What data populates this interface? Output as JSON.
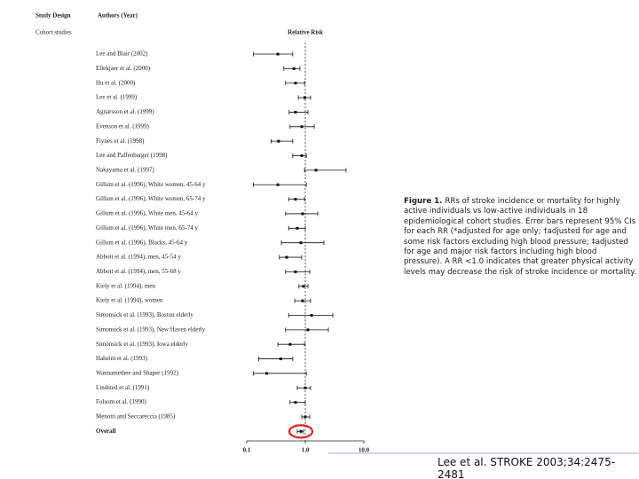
{
  "chart_data": {
    "type": "forest",
    "study_design_header": "Study Design",
    "authors_header": "Authors (Year)",
    "group_label": "Cohort studies",
    "x_label": "Relative Risk",
    "categories": [
      "Lee and Blair (2002)",
      "Ellekjaer et al. (2000)",
      "Hu et al. (2000)",
      "Lee et al. (1999)",
      "Agnarsson et al. (1999)",
      "Evenson et al. (1999)",
      "Fiynes et al. (1998)",
      "Lee and Paffenbarger (1998)",
      "Nakayama et al. (1997)",
      "Gillum et al. (1996), White women, 45-64 y",
      "Gillum et al. (1996), White women, 65-74 y",
      "Gillum et al. (1996), White men, 45-64 y",
      "Gillum et al. (1996), White men, 65-74 y",
      "Gillum et al. (1996), Blacks, 45-64 y",
      "Abbott et al. (1994), men, 45-54 y",
      "Abbott et al. (1994), men, 55-68 y",
      "Kiely et al. (1994), men",
      "Kiely et al. (1994), women",
      "Simonsick et al. (1993), Boston elderly",
      "Simonsick et al. (1993), New Haven elderly",
      "Simonsick et al. (1993), Iowa elderly",
      "Haheim et al. (1993)",
      "Wannamethee and Shaper (1992)",
      "Lindsted et al. (1991)",
      "Folsom et al. (1990)",
      "Menotti and Seccareccia (1985)",
      "Overall"
    ],
    "values": [
      0.34,
      0.64,
      0.68,
      0.98,
      0.68,
      0.87,
      0.35,
      0.87,
      1.52,
      0.34,
      0.68,
      0.9,
      0.73,
      0.84,
      0.48,
      0.68,
      0.93,
      0.9,
      1.28,
      1.11,
      0.55,
      0.38,
      0.22,
      1.0,
      0.68,
      1.0,
      0.84
    ],
    "lower": [
      0.13,
      0.43,
      0.46,
      0.76,
      0.53,
      0.55,
      0.26,
      0.61,
      0.97,
      0.13,
      0.52,
      0.46,
      0.52,
      0.39,
      0.36,
      0.46,
      0.78,
      0.66,
      0.52,
      0.46,
      0.34,
      0.16,
      0.13,
      0.73,
      0.55,
      0.87,
      0.73
    ],
    "upper": [
      0.61,
      0.81,
      0.97,
      1.23,
      1.11,
      1.42,
      0.61,
      1.04,
      4.97,
      1.04,
      0.97,
      1.63,
      1.0,
      2.08,
      0.87,
      1.19,
      1.11,
      1.23,
      2.95,
      2.48,
      0.97,
      0.61,
      1.04,
      1.23,
      1.0,
      1.19,
      0.93
    ],
    "xlim": [
      0.1,
      10
    ],
    "xticks": [
      0.1,
      {
        "value": 1,
        "label": "1.0"
      },
      {
        "value": 10,
        "label": "10.0"
      }
    ],
    "log_scale": true,
    "reference_line": 1,
    "color": "#111111",
    "highlight_color": "#e02020"
  },
  "caption": {
    "title": "Figure 1.",
    "text": "RRs of stroke incidence or mortality for highly active individuals vs low-active individuals in 18 epidemiological cohort studies. Error bars represent 95% CIs for each RR (*adjusted for age only; †adjusted for age and some risk factors excluding high blood pressure; ‡adjusted for age and major risk factors including high blood pressure). A RR <1.0 indicates that greater physical activity levels may decrease the risk of stroke incidence or mortality."
  },
  "citation": "Lee et al. STROKE 2003;34:2475-2481"
}
